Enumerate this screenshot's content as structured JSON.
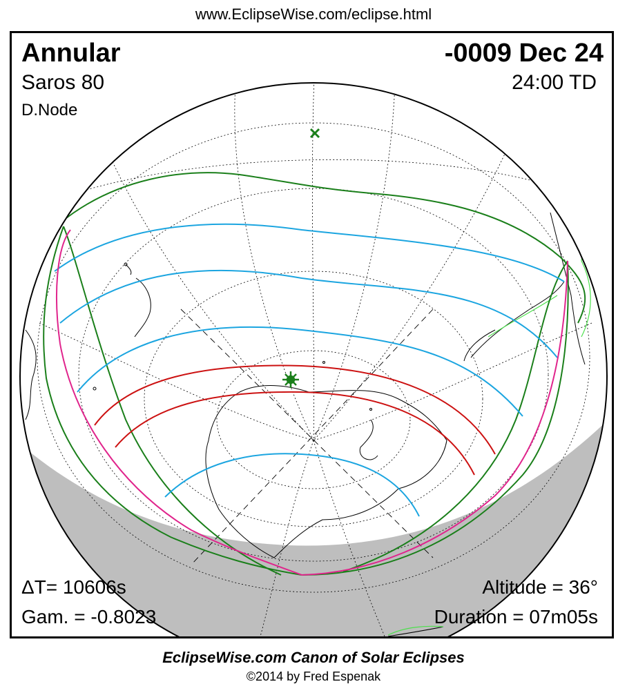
{
  "header": {
    "url": "www.EclipseWise.com/eclipse.html"
  },
  "eclipse": {
    "type": "Annular",
    "date": "-0009 Dec 24",
    "saros": "Saros  80",
    "time": "24:00 TD",
    "node": "D.Node",
    "delta_t": "ΔT=  10606s",
    "gamma": "Gam. = -0.8023",
    "altitude": "Altitude = 36°",
    "duration": "Duration = 07m05s"
  },
  "colors": {
    "penumbral_limits": "#1a7f1a",
    "partial_lines": "#1ba5e0",
    "central_path": "#cc1111",
    "rise_set_curve": "#e0248c",
    "night_shading": "#bebebe",
    "coastline": "#000000",
    "coastline_highlight": "#4ce04c"
  },
  "markers": {
    "greatest_eclipse": "asterisk-star-icon",
    "subsolar_point": "x-mark-icon"
  },
  "footer": {
    "title": "EclipseWise.com Canon of Solar Eclipses",
    "copyright": "©2014 by Fred Espenak"
  }
}
